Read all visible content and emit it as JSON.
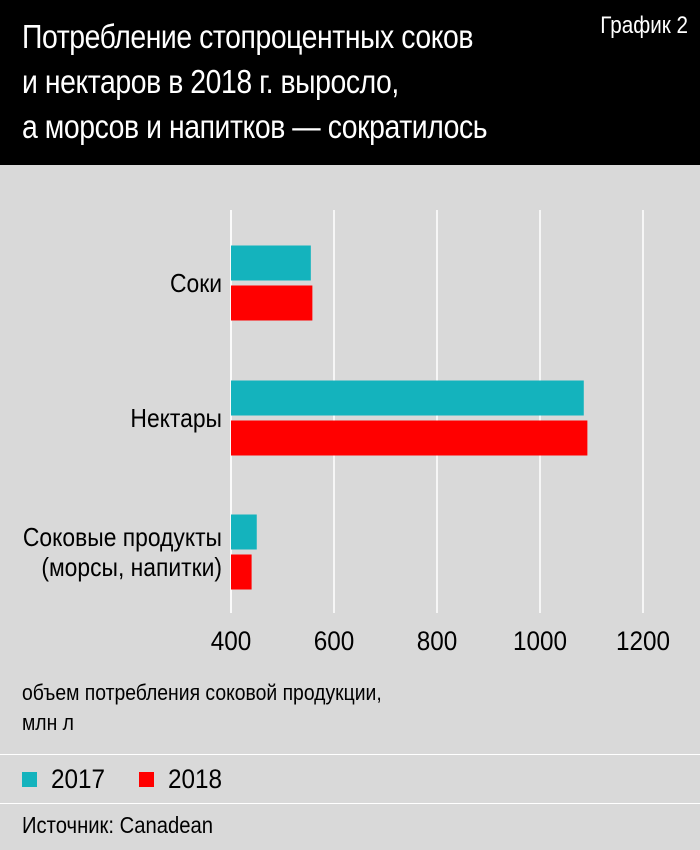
{
  "header": {
    "title_lines": [
      "Потребление стопроцентных соков",
      "и нектаров в 2018 г. выросло,",
      "а морсов и напитков — сократилось"
    ],
    "chart_number": "График 2"
  },
  "chart_data": {
    "type": "bar",
    "orientation": "horizontal",
    "categories": [
      [
        "Соки"
      ],
      [
        "Нектары"
      ],
      [
        "Соковые продукты",
        "(морсы, напитки)"
      ]
    ],
    "series": [
      {
        "name": "2017",
        "color": "#14b3bd",
        "values": [
          555,
          1085,
          450
        ]
      },
      {
        "name": "2018",
        "color": "#ff0000",
        "values": [
          558,
          1092,
          440
        ]
      }
    ],
    "xlim": [
      400,
      1200
    ],
    "xticks": [
      "400",
      "600",
      "800",
      "1000",
      "1200"
    ],
    "xlabel_lines": [
      "объем потребления соковой продукции,",
      "млн л"
    ],
    "grid": true,
    "legend_position": "bottom-left"
  },
  "legend": [
    {
      "label": "2017",
      "color": "#14b3bd"
    },
    {
      "label": "2018",
      "color": "#ff0000"
    }
  ],
  "source": "Источник: Canadean"
}
